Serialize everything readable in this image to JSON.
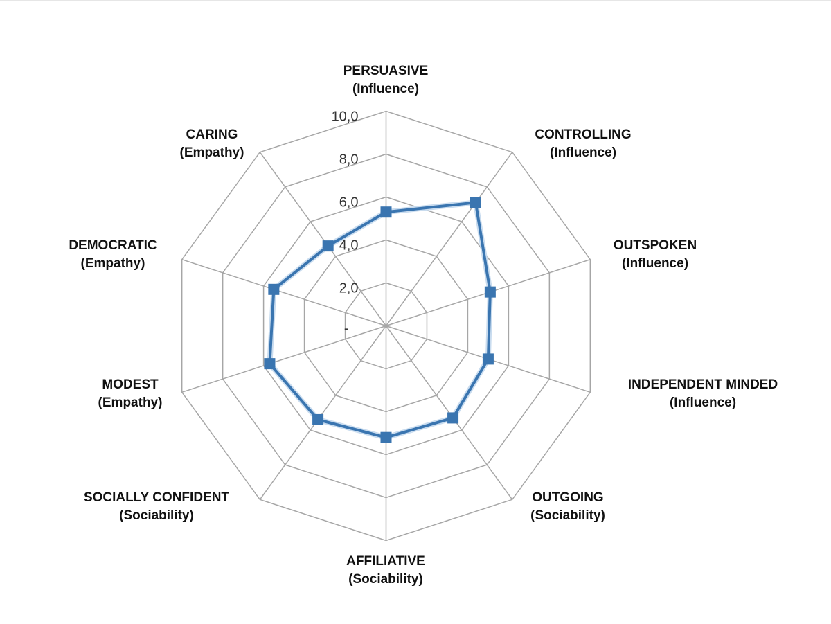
{
  "chart_data": {
    "type": "radar",
    "categories": [
      {
        "name": "PERSUASIVE",
        "group": "(Influence)"
      },
      {
        "name": "CONTROLLING",
        "group": "(Influence)"
      },
      {
        "name": "OUTSPOKEN",
        "group": "(Influence)"
      },
      {
        "name": "INDEPENDENT MINDED",
        "group": "(Influence)"
      },
      {
        "name": "OUTGOING",
        "group": "(Sociability)"
      },
      {
        "name": "AFFILIATIVE",
        "group": "(Sociability)"
      },
      {
        "name": "SOCIALLY CONFIDENT",
        "group": "(Sociability)"
      },
      {
        "name": "MODEST",
        "group": "(Empathy)"
      },
      {
        "name": "DEMOCRATIC",
        "group": "(Empathy)"
      },
      {
        "name": "CARING",
        "group": "(Empathy)"
      }
    ],
    "values": [
      5.3,
      7.1,
      5.1,
      5.0,
      5.3,
      5.2,
      5.4,
      5.7,
      5.5,
      4.6
    ],
    "rlim": [
      0,
      10
    ],
    "ticks": [
      0,
      2,
      4,
      6,
      8,
      10
    ],
    "tick_labels": [
      "-",
      "2,0",
      "4,0",
      "6,0",
      "8,0",
      "10,0"
    ],
    "grid": true,
    "legend": "none",
    "series_color": "#3a75b0",
    "grid_color": "#a6a6a6",
    "marker": "square"
  }
}
